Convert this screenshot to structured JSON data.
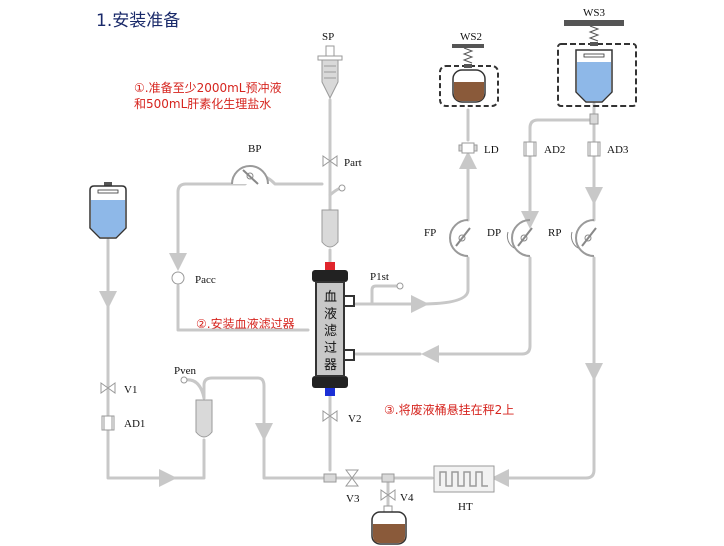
{
  "title": "1.安装准备",
  "notes": {
    "note1_line1": "①.准备至少2000mL预冲液",
    "note1_line2": "和500mL肝素化生理盐水",
    "note2": "②.安装血液滤过器",
    "note3": "③.将废液桶悬挂在秤2上"
  },
  "filter": {
    "chars": [
      "血",
      "液",
      "滤",
      "过",
      "器"
    ]
  },
  "labels": {
    "sp": "SP",
    "ws2": "WS2",
    "ws3": "WS3",
    "bp": "BP",
    "part": "Part",
    "ld": "LD",
    "ad2": "AD2",
    "ad3": "AD3",
    "fp": "FP",
    "dp": "DP",
    "rp": "RP",
    "pacc": "Pacc",
    "p1st": "P1st",
    "pven": "Pven",
    "v1": "V1",
    "ad1": "AD1",
    "v2": "V2",
    "v3": "V3",
    "v4": "V4",
    "ht": "HT"
  },
  "colors": {
    "tube": "#c8c8c8",
    "fluid_blue": "#8eb8e8",
    "waste_brown": "#8a5a3a",
    "connector_red": "#e0252c",
    "connector_blue": "#1b2fd6",
    "note_red": "#d6251f",
    "title_navy": "#1a2a6a"
  },
  "icons": [
    "syringe-icon",
    "waste-bag-icon",
    "saline-bag-icon",
    "pump-icon",
    "pinch-valve-icon",
    "air-detector-icon",
    "drip-chamber-icon",
    "heater-icon",
    "scale-spring-icon"
  ]
}
